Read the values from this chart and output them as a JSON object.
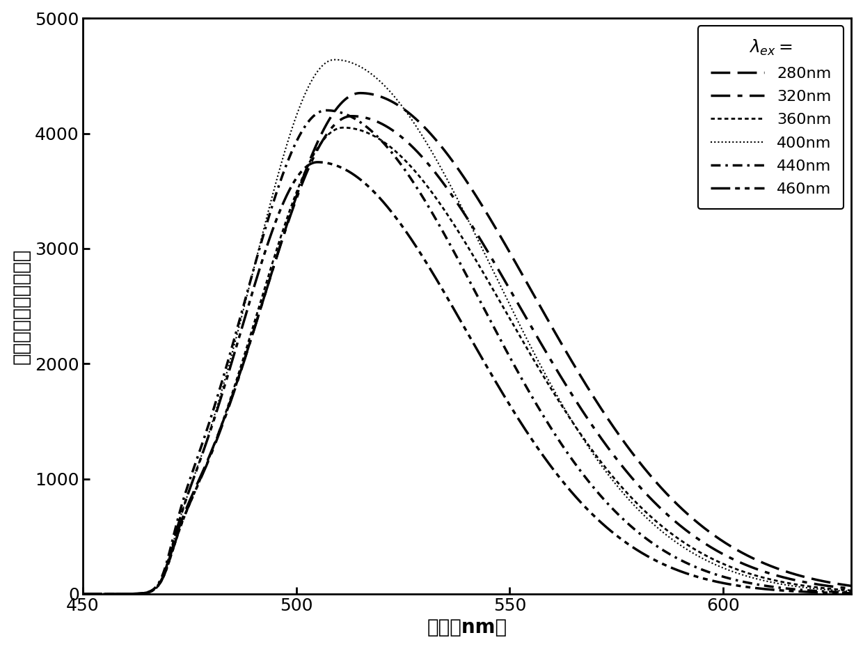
{
  "xlabel": "波长（nm）",
  "ylabel": "荧光强度（相对大小）",
  "xlim": [
    450,
    630
  ],
  "ylim": [
    0,
    5000
  ],
  "xticks": [
    450,
    500,
    550,
    600
  ],
  "yticks": [
    0,
    1000,
    2000,
    3000,
    4000,
    5000
  ],
  "background_color": "#ffffff",
  "line_color": "#000000",
  "line_configs": [
    {
      "label": "280nm",
      "lw": 2.5,
      "peak_x": 515,
      "peak_y": 4350,
      "sigma_l": 22,
      "sigma_r": 40
    },
    {
      "label": "320nm",
      "lw": 2.5,
      "peak_x": 513,
      "peak_y": 4150,
      "sigma_l": 21,
      "sigma_r": 39
    },
    {
      "label": "360nm",
      "lw": 2.0,
      "peak_x": 511,
      "peak_y": 4050,
      "sigma_l": 20,
      "sigma_r": 38
    },
    {
      "label": "400nm",
      "lw": 1.5,
      "peak_x": 509,
      "peak_y": 4640,
      "sigma_l": 19,
      "sigma_r": 37
    },
    {
      "label": "440nm",
      "lw": 2.5,
      "peak_x": 507,
      "peak_y": 4200,
      "sigma_l": 19,
      "sigma_r": 36
    },
    {
      "label": "460nm",
      "lw": 2.5,
      "peak_x": 505,
      "peak_y": 3750,
      "sigma_l": 18,
      "sigma_r": 35
    }
  ],
  "legend_title": "$\\lambda_{ex}=$",
  "label_fontsize": 20,
  "tick_fontsize": 18,
  "legend_fontsize": 16
}
